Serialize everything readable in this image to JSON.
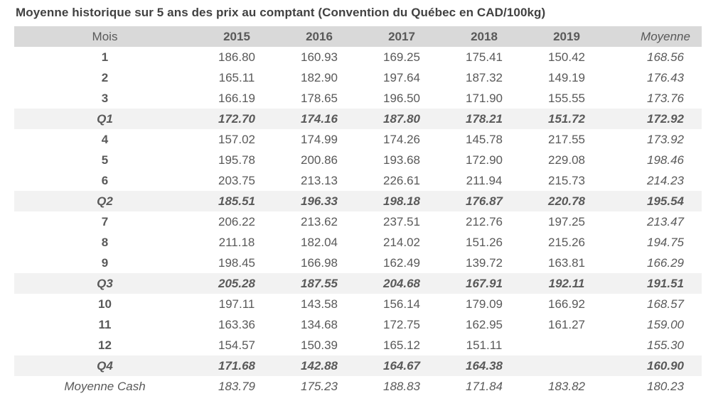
{
  "title": "Moyenne historique sur 5 ans des prix au comptant (Convention du Québec en CAD/100kg)",
  "colors": {
    "header_bg": "#d9d9d9",
    "quarter_row_bg": "#f2f2f2",
    "text": "#595959",
    "title": "#414141"
  },
  "table": {
    "columns": [
      "Mois",
      "2015",
      "2016",
      "2017",
      "2018",
      "2019",
      "Moyenne"
    ],
    "rows": [
      {
        "label": "1",
        "type": "month",
        "values": [
          "186.80",
          "160.93",
          "169.25",
          "175.41",
          "150.42",
          "168.56"
        ]
      },
      {
        "label": "2",
        "type": "month",
        "values": [
          "165.11",
          "182.90",
          "197.64",
          "187.32",
          "149.19",
          "176.43"
        ]
      },
      {
        "label": "3",
        "type": "month",
        "values": [
          "166.19",
          "178.65",
          "196.50",
          "171.90",
          "155.55",
          "173.76"
        ]
      },
      {
        "label": "Q1",
        "type": "quarter",
        "values": [
          "172.70",
          "174.16",
          "187.80",
          "178.21",
          "151.72",
          "172.92"
        ]
      },
      {
        "label": "4",
        "type": "month",
        "values": [
          "157.02",
          "174.99",
          "174.26",
          "145.78",
          "217.55",
          "173.92"
        ]
      },
      {
        "label": "5",
        "type": "month",
        "values": [
          "195.78",
          "200.86",
          "193.68",
          "172.90",
          "229.08",
          "198.46"
        ]
      },
      {
        "label": "6",
        "type": "month",
        "values": [
          "203.75",
          "213.13",
          "226.61",
          "211.94",
          "215.73",
          "214.23"
        ]
      },
      {
        "label": "Q2",
        "type": "quarter",
        "values": [
          "185.51",
          "196.33",
          "198.18",
          "176.87",
          "220.78",
          "195.54"
        ]
      },
      {
        "label": "7",
        "type": "month",
        "values": [
          "206.22",
          "213.62",
          "237.51",
          "212.76",
          "197.25",
          "213.47"
        ]
      },
      {
        "label": "8",
        "type": "month",
        "values": [
          "211.18",
          "182.04",
          "214.02",
          "151.26",
          "215.26",
          "194.75"
        ]
      },
      {
        "label": "9",
        "type": "month",
        "values": [
          "198.45",
          "166.98",
          "162.49",
          "139.72",
          "163.81",
          "166.29"
        ]
      },
      {
        "label": "Q3",
        "type": "quarter",
        "values": [
          "205.28",
          "187.55",
          "204.68",
          "167.91",
          "192.11",
          "191.51"
        ]
      },
      {
        "label": "10",
        "type": "month",
        "values": [
          "197.11",
          "143.58",
          "156.14",
          "179.09",
          "166.92",
          "168.57"
        ]
      },
      {
        "label": "11",
        "type": "month",
        "values": [
          "163.36",
          "134.68",
          "172.75",
          "162.95",
          "161.27",
          "159.00"
        ]
      },
      {
        "label": "12",
        "type": "month",
        "values": [
          "154.57",
          "150.39",
          "165.12",
          "151.11",
          "",
          "155.30"
        ]
      },
      {
        "label": "Q4",
        "type": "quarter",
        "values": [
          "171.68",
          "142.88",
          "164.67",
          "164.38",
          "",
          "160.90"
        ]
      },
      {
        "label": "Moyenne Cash",
        "type": "summary",
        "values": [
          "183.79",
          "175.23",
          "188.83",
          "171.84",
          "183.82",
          "180.23"
        ]
      }
    ]
  }
}
